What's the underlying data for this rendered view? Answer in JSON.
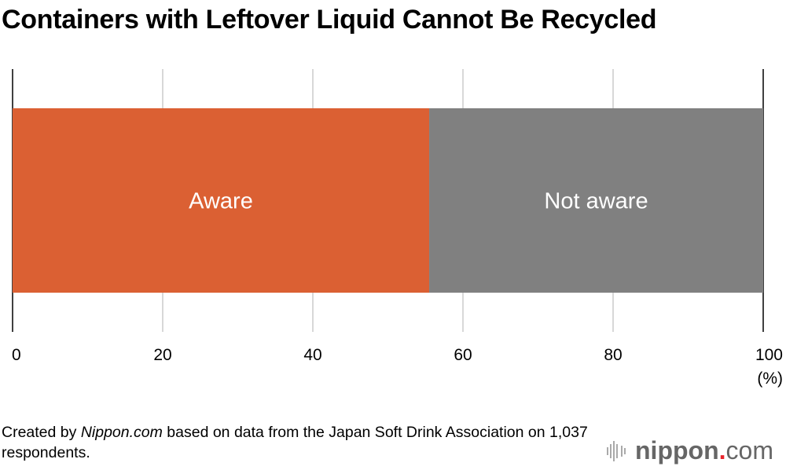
{
  "title": "Containers with Leftover Liquid Cannot Be Recycled",
  "chart_data": {
    "type": "bar",
    "orientation": "horizontal-stacked-100",
    "title": "Containers with Leftover Liquid Cannot Be Recycled",
    "series": [
      {
        "name": "Aware",
        "value": 55.5,
        "color": "#db6033"
      },
      {
        "name": "Not aware",
        "value": 44.5,
        "color": "#808080"
      }
    ],
    "xlim": [
      0,
      100
    ],
    "xticks": [
      "0",
      "20",
      "40",
      "60",
      "80",
      "100"
    ],
    "xunit": "(%)",
    "grid": true
  },
  "source": {
    "prefix": "Created by ",
    "site": "Nippon.com",
    "suffix": " based on data from the Japan Soft Drink Association on 1,037 respondents."
  },
  "logo": {
    "text": "nippon",
    "dot": ".",
    "tld": "com",
    "accent": "#e8232a"
  }
}
